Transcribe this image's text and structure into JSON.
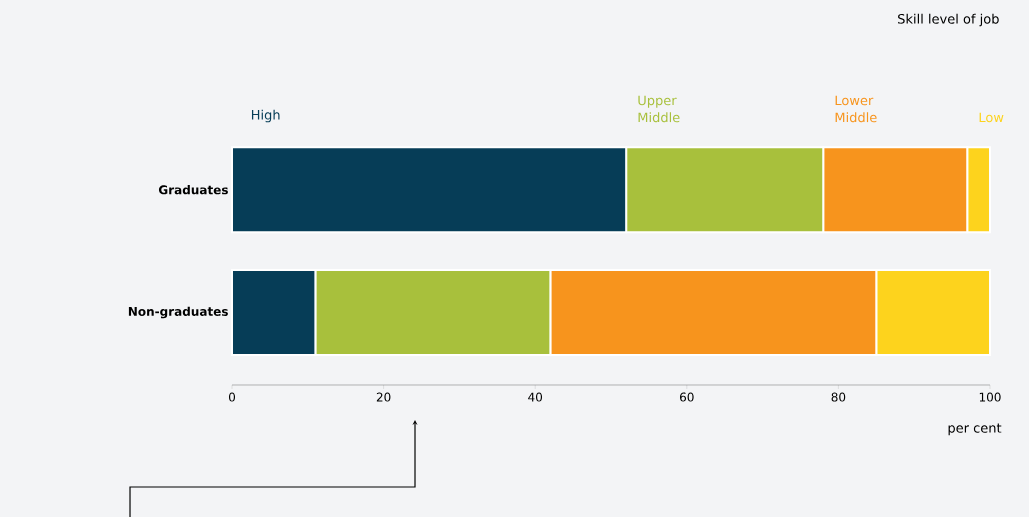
{
  "chart_data": {
    "type": "bar",
    "orientation": "horizontal",
    "stacked": true,
    "legend": "top",
    "legend_title": "Skill level of job",
    "xlabel": "per cent",
    "categories": [
      "Graduates",
      "Non-graduates"
    ],
    "series": [
      {
        "name": "High",
        "color": "#063d57",
        "values": [
          52,
          11
        ]
      },
      {
        "name": "Upper Middle",
        "color": "#a8c03c",
        "values": [
          26,
          31
        ]
      },
      {
        "name": "Lower Middle",
        "color": "#f7941d",
        "values": [
          19,
          43
        ]
      },
      {
        "name": "Low",
        "color": "#fdd31d",
        "values": [
          3,
          15
        ]
      }
    ],
    "xlim": [
      0,
      100
    ],
    "xticks": [
      0,
      20,
      40,
      60,
      80,
      100
    ]
  }
}
